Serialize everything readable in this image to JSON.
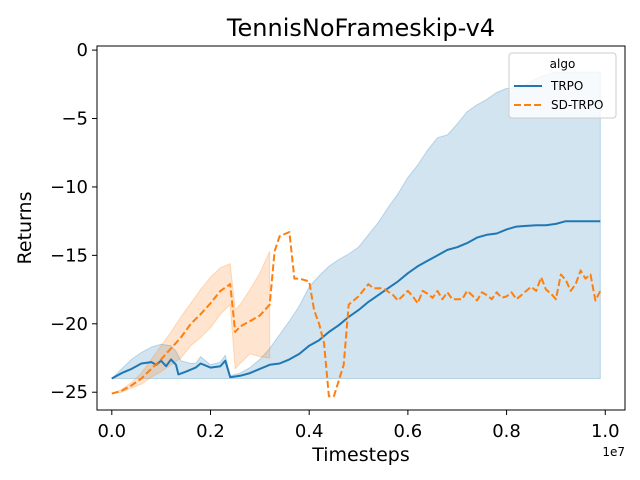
{
  "chart_data": {
    "type": "line",
    "title": "TennisNoFrameskip-v4",
    "xlabel": "Timesteps",
    "ylabel": "Returns",
    "x_scale_label": "1e7",
    "xlim": [
      -0.03,
      1.04
    ],
    "ylim": [
      -26.3,
      0.3
    ],
    "x_ticks": [
      0.0,
      0.2,
      0.4,
      0.6,
      0.8,
      1.0
    ],
    "x_tick_labels": [
      "0.0",
      "0.2",
      "0.4",
      "0.6",
      "0.8",
      "1.0"
    ],
    "y_ticks": [
      0,
      -5,
      -10,
      -15,
      -20,
      -25
    ],
    "y_tick_labels": [
      "0",
      "−5",
      "−10",
      "−15",
      "−20",
      "−25"
    ],
    "grid": false,
    "legend": {
      "title": "algo",
      "placement": "top-right",
      "entries": [
        {
          "label": "TRPO",
          "color": "#1f77b4",
          "style": "solid"
        },
        {
          "label": "SD-TRPO",
          "color": "#ff7f0e",
          "style": "dashed"
        }
      ]
    },
    "series": [
      {
        "name": "TRPO",
        "color": "#1f77b4",
        "style": "solid",
        "x": [
          0.0,
          0.02,
          0.04,
          0.06,
          0.08,
          0.09,
          0.1,
          0.11,
          0.12,
          0.13,
          0.135,
          0.15,
          0.17,
          0.18,
          0.2,
          0.22,
          0.23,
          0.24,
          0.26,
          0.28,
          0.3,
          0.32,
          0.34,
          0.36,
          0.38,
          0.4,
          0.42,
          0.44,
          0.46,
          0.48,
          0.5,
          0.52,
          0.54,
          0.56,
          0.58,
          0.6,
          0.62,
          0.64,
          0.66,
          0.68,
          0.7,
          0.72,
          0.74,
          0.76,
          0.78,
          0.8,
          0.82,
          0.84,
          0.86,
          0.88,
          0.9,
          0.92,
          0.94,
          0.96,
          0.98,
          0.99
        ],
        "y": [
          -24.0,
          -23.6,
          -23.3,
          -22.9,
          -22.8,
          -23.0,
          -22.7,
          -23.1,
          -22.6,
          -23.0,
          -23.7,
          -23.5,
          -23.2,
          -22.9,
          -23.2,
          -23.1,
          -22.7,
          -23.9,
          -23.8,
          -23.6,
          -23.3,
          -23.0,
          -22.9,
          -22.6,
          -22.2,
          -21.6,
          -21.2,
          -20.6,
          -20.1,
          -19.5,
          -19.0,
          -18.4,
          -17.9,
          -17.4,
          -16.9,
          -16.3,
          -15.8,
          -15.4,
          -15.0,
          -14.6,
          -14.4,
          -14.1,
          -13.7,
          -13.5,
          -13.4,
          -13.1,
          -12.9,
          -12.85,
          -12.8,
          -12.8,
          -12.7,
          -12.5,
          -12.5,
          -12.5,
          -12.5,
          -12.5
        ]
      },
      {
        "name": "SD-TRPO",
        "color": "#ff7f0e",
        "style": "dashed",
        "x": [
          0.0,
          0.02,
          0.04,
          0.06,
          0.08,
          0.1,
          0.12,
          0.14,
          0.16,
          0.18,
          0.2,
          0.22,
          0.24,
          0.25,
          0.26,
          0.28,
          0.3,
          0.32,
          0.33,
          0.34,
          0.36,
          0.37,
          0.38,
          0.4,
          0.41,
          0.42,
          0.43,
          0.44,
          0.45,
          0.47,
          0.48,
          0.5,
          0.52,
          0.53,
          0.55,
          0.57,
          0.58,
          0.6,
          0.61,
          0.62,
          0.63,
          0.64,
          0.65,
          0.66,
          0.67,
          0.68,
          0.69,
          0.7,
          0.71,
          0.72,
          0.73,
          0.74,
          0.75,
          0.76,
          0.77,
          0.78,
          0.79,
          0.8,
          0.81,
          0.82,
          0.83,
          0.84,
          0.85,
          0.86,
          0.87,
          0.88,
          0.89,
          0.9,
          0.91,
          0.92,
          0.93,
          0.94,
          0.95,
          0.96,
          0.97,
          0.98,
          0.99
        ],
        "y": [
          -25.1,
          -24.9,
          -24.5,
          -24.0,
          -23.3,
          -22.6,
          -21.8,
          -21.0,
          -20.0,
          -19.3,
          -18.5,
          -17.6,
          -17.1,
          -20.6,
          -20.2,
          -19.8,
          -19.4,
          -18.6,
          -14.7,
          -13.6,
          -13.3,
          -16.7,
          -16.7,
          -16.9,
          -19.0,
          -20.0,
          -21.4,
          -25.3,
          -25.3,
          -23.0,
          -18.6,
          -18.0,
          -17.1,
          -17.4,
          -17.4,
          -17.9,
          -18.3,
          -17.6,
          -18.0,
          -18.5,
          -17.6,
          -17.8,
          -18.1,
          -17.6,
          -18.2,
          -17.7,
          -18.2,
          -18.2,
          -18.2,
          -17.6,
          -17.9,
          -18.3,
          -17.7,
          -17.9,
          -18.2,
          -17.7,
          -18.1,
          -18.0,
          -17.7,
          -18.2,
          -17.9,
          -17.6,
          -17.3,
          -17.6,
          -16.6,
          -17.5,
          -17.8,
          -18.2,
          -16.4,
          -16.8,
          -17.6,
          -17.1,
          -16.1,
          -16.7,
          -16.4,
          -18.3,
          -17.6
        ]
      }
    ],
    "bands": [
      {
        "series": "TRPO",
        "color": "#1f77b4",
        "opacity": 0.2,
        "x": [
          0.0,
          0.02,
          0.04,
          0.06,
          0.08,
          0.1,
          0.12,
          0.13,
          0.14,
          0.16,
          0.17,
          0.18,
          0.2,
          0.22,
          0.23,
          0.24,
          0.26,
          0.28,
          0.3,
          0.32,
          0.34,
          0.36,
          0.38,
          0.4,
          0.42,
          0.44,
          0.46,
          0.48,
          0.5,
          0.52,
          0.54,
          0.56,
          0.58,
          0.6,
          0.62,
          0.64,
          0.66,
          0.68,
          0.7,
          0.72,
          0.74,
          0.76,
          0.78,
          0.8,
          0.82,
          0.84,
          0.86,
          0.88,
          0.9,
          0.92,
          0.94,
          0.96,
          0.98,
          0.99
        ],
        "upper": [
          -24.0,
          -23.3,
          -22.6,
          -22.1,
          -21.7,
          -21.5,
          -21.6,
          -22.0,
          -22.7,
          -22.9,
          -22.9,
          -22.4,
          -23.0,
          -22.8,
          -22.3,
          -23.8,
          -23.6,
          -23.2,
          -22.6,
          -21.8,
          -20.8,
          -19.8,
          -18.7,
          -17.3,
          -16.5,
          -15.8,
          -15.3,
          -14.9,
          -14.4,
          -13.5,
          -12.6,
          -11.5,
          -10.5,
          -9.3,
          -8.4,
          -7.3,
          -6.4,
          -6.2,
          -5.4,
          -4.5,
          -4.0,
          -3.6,
          -3.1,
          -2.8,
          -2.8,
          -2.5,
          -2.1,
          -1.8,
          -1.6,
          -1.6,
          -1.6,
          -1.6,
          -1.6,
          -1.6
        ],
        "lower": [
          -24.0,
          -24.0,
          -24.0,
          -24.0,
          -24.0,
          -24.0,
          -24.0,
          -24.0,
          -24.0,
          -24.0,
          -24.0,
          -24.0,
          -24.0,
          -24.0,
          -24.0,
          -24.0,
          -24.0,
          -24.0,
          -24.0,
          -24.0,
          -24.0,
          -24.0,
          -24.0,
          -24.0,
          -24.0,
          -24.0,
          -24.0,
          -24.0,
          -24.0,
          -24.0,
          -24.0,
          -24.0,
          -24.0,
          -24.0,
          -24.0,
          -24.0,
          -24.0,
          -24.0,
          -24.0,
          -24.0,
          -24.0,
          -24.0,
          -24.0,
          -24.0,
          -24.0,
          -24.0,
          -24.0,
          -24.0,
          -24.0,
          -24.0,
          -24.0,
          -24.0,
          -24.0,
          -24.0
        ]
      },
      {
        "series": "SD-TRPO",
        "color": "#ff7f0e",
        "opacity": 0.2,
        "x": [
          0.0,
          0.02,
          0.04,
          0.06,
          0.08,
          0.1,
          0.12,
          0.14,
          0.16,
          0.18,
          0.2,
          0.22,
          0.24,
          0.25,
          0.26,
          0.28,
          0.3,
          0.32
        ],
        "upper": [
          -25.1,
          -24.8,
          -24.3,
          -23.6,
          -22.6,
          -21.6,
          -20.6,
          -19.5,
          -18.5,
          -17.5,
          -16.6,
          -15.9,
          -15.6,
          -19.0,
          -18.6,
          -17.5,
          -16.3,
          -14.7
        ],
        "lower": [
          -25.1,
          -25.0,
          -24.7,
          -24.4,
          -23.9,
          -23.5,
          -23.0,
          -22.5,
          -21.6,
          -21.0,
          -20.3,
          -19.3,
          -18.6,
          -23.3,
          -22.9,
          -22.2,
          -22.4,
          -22.5
        ]
      }
    ]
  }
}
